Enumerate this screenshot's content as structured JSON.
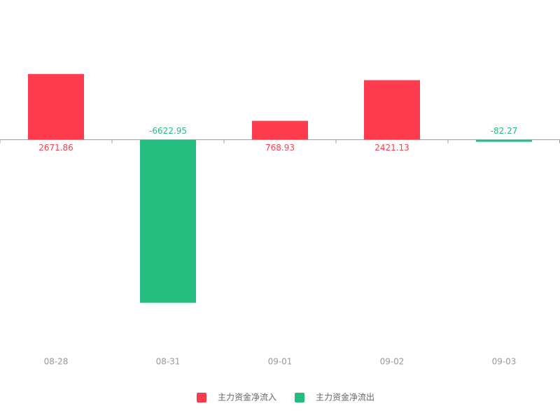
{
  "chart_data": {
    "type": "bar",
    "categories": [
      "08-28",
      "08-31",
      "09-01",
      "09-02",
      "09-03"
    ],
    "series": [
      {
        "name": "主力资金净流入",
        "color": "#fd3d4d",
        "values": [
          2671.86,
          null,
          768.93,
          2421.13,
          null
        ]
      },
      {
        "name": "主力资金净流出",
        "color": "#22bd7f",
        "values": [
          null,
          -6622.95,
          null,
          null,
          -82.27
        ]
      }
    ],
    "ylim": [
      -8000,
      4000
    ]
  }
}
